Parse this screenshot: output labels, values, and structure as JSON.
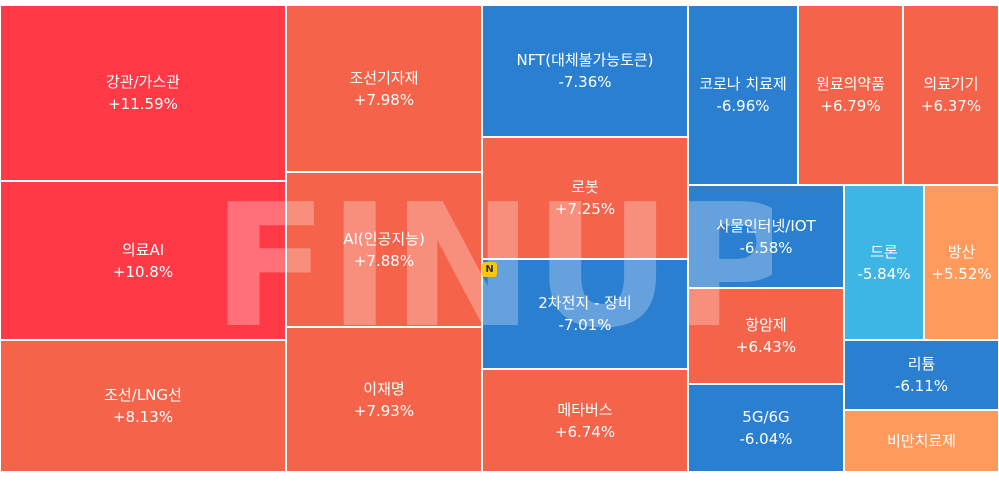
{
  "chart_data": {
    "type": "treemap",
    "tiles": [
      {
        "name": "강관/가스관",
        "pct": "+11.59%",
        "value": 11.59,
        "color": "#ff3a46"
      },
      {
        "name": "의료AI",
        "pct": "+10.8%",
        "value": 10.8,
        "color": "#ff3a46"
      },
      {
        "name": "조선/LNG선",
        "pct": "+8.13%",
        "value": 8.13,
        "color": "#f5644a"
      },
      {
        "name": "조선기자재",
        "pct": "+7.98%",
        "value": 7.98,
        "color": "#f5644a"
      },
      {
        "name": "AI(인공지능)",
        "pct": "+7.88%",
        "value": 7.88,
        "color": "#f5644a"
      },
      {
        "name": "이재명",
        "pct": "+7.93%",
        "value": 7.93,
        "color": "#f5644a"
      },
      {
        "name": "NFT(대체불가능토큰)",
        "pct": "-7.36%",
        "value": -7.36,
        "color": "#2a7fd0"
      },
      {
        "name": "로봇",
        "pct": "+7.25%",
        "value": 7.25,
        "color": "#f5644a"
      },
      {
        "name": "2차전지 - 장비",
        "pct": "-7.01%",
        "value": -7.01,
        "color": "#2a7fd0"
      },
      {
        "name": "메타버스",
        "pct": "+6.74%",
        "value": 6.74,
        "color": "#f5644a"
      },
      {
        "name": "코로나 치료제",
        "pct": "-6.96%",
        "value": -6.96,
        "color": "#2a7fd0"
      },
      {
        "name": "원료의약품",
        "pct": "+6.79%",
        "value": 6.79,
        "color": "#f5644a"
      },
      {
        "name": "의료기기",
        "pct": "+6.37%",
        "value": 6.37,
        "color": "#f5644a"
      },
      {
        "name": "사물인터넷/IOT",
        "pct": "-6.58%",
        "value": -6.58,
        "color": "#2a7fd0"
      },
      {
        "name": "드론",
        "pct": "-5.84%",
        "value": -5.84,
        "color": "#3db5e5"
      },
      {
        "name": "방산",
        "pct": "+5.52%",
        "value": 5.52,
        "color": "#ff9a5c"
      },
      {
        "name": "항암제",
        "pct": "+6.43%",
        "value": 6.43,
        "color": "#f5644a"
      },
      {
        "name": "리튬",
        "pct": "-6.11%",
        "value": -6.11,
        "color": "#2a7fd0"
      },
      {
        "name": "5G/6G",
        "pct": "-6.04%",
        "value": -6.04,
        "color": "#2a7fd0"
      },
      {
        "name": "비만치료제",
        "pct": "",
        "value": null,
        "color": "#ff9a5c"
      }
    ]
  },
  "watermark": "FINUP",
  "badge": "N"
}
